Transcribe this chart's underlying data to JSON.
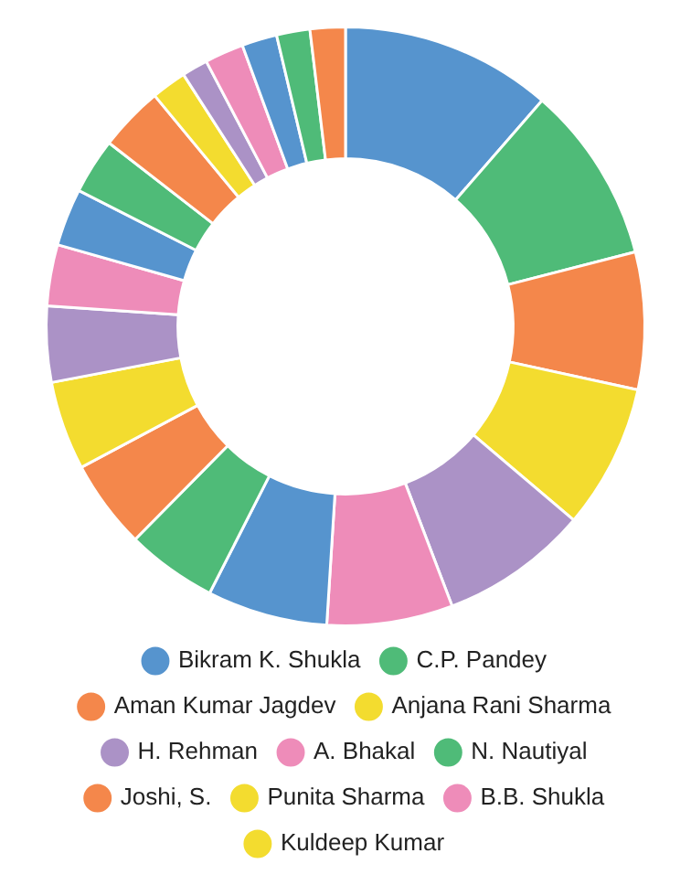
{
  "chart_data": {
    "type": "donut",
    "categories": [
      "Bikram K. Shukla",
      "C.P. Pandey",
      "Aman Kumar Jagdev",
      "Anjana Rani Sharma",
      "H. Rehman",
      "A. Bhakal",
      null,
      "N. Nautiyal",
      "Joshi, S.",
      "Punita Sharma",
      null,
      "B.B. Shukla",
      null,
      null,
      null,
      "Kuldeep Kumar",
      null,
      null,
      null,
      null,
      null
    ],
    "values": [
      11.4,
      9.6,
      7.4,
      7.8,
      8.0,
      6.8,
      6.5,
      4.9,
      4.8,
      4.8,
      4.1,
      3.3,
      3.1,
      3.0,
      3.5,
      1.9,
      1.4,
      2.1,
      1.9,
      1.8,
      1.9
    ],
    "colors": [
      "#5694ce",
      "#4fbb78",
      "#f4874b",
      "#f3dc2f",
      "#ab92c6",
      "#ee8cb9",
      "#5694ce",
      "#4fbb78",
      "#f4874b",
      "#f3dc2f",
      "#ab92c6",
      "#ee8cb9",
      "#5694ce",
      "#4fbb78",
      "#f4874b",
      "#f3dc2f",
      "#ab92c6",
      "#ee8cb9",
      "#5694ce",
      "#4fbb78",
      "#f4874b"
    ],
    "legend": "bottom"
  }
}
